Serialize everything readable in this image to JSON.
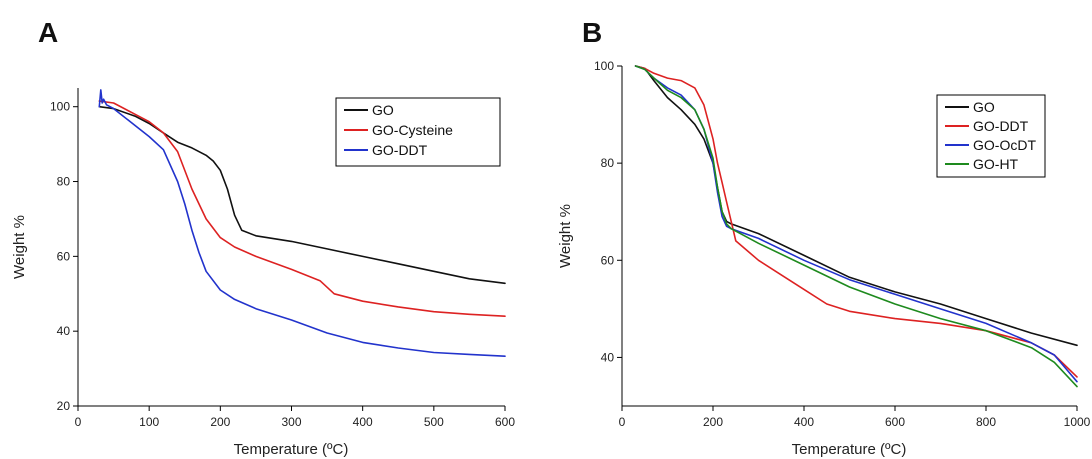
{
  "chart_data": [
    {
      "panel": "A",
      "type": "line",
      "xlabel": "Temperature (ºC)",
      "ylabel": "Weight %",
      "xlim": [
        0,
        600
      ],
      "ylim": [
        20,
        105
      ],
      "xticks": [
        0,
        100,
        200,
        300,
        400,
        500,
        600
      ],
      "yticks": [
        20,
        40,
        60,
        80,
        100
      ],
      "legend_position": "top-right",
      "grid": false,
      "series": [
        {
          "name": "GO",
          "color": "#111111",
          "x": [
            30,
            50,
            80,
            100,
            120,
            140,
            160,
            180,
            190,
            200,
            210,
            220,
            230,
            250,
            300,
            350,
            400,
            450,
            500,
            550,
            600
          ],
          "y": [
            100,
            99.5,
            97.5,
            95.5,
            93,
            90.5,
            89,
            87,
            85.5,
            83,
            78,
            71,
            67,
            65.5,
            64,
            62,
            60,
            58,
            56,
            54,
            52.8
          ]
        },
        {
          "name": "GO-Cysteine",
          "color": "#dd2222",
          "x": [
            30,
            50,
            80,
            100,
            120,
            140,
            160,
            180,
            200,
            220,
            250,
            300,
            340,
            360,
            400,
            450,
            500,
            550,
            600
          ],
          "y": [
            101.5,
            101,
            98,
            96,
            93,
            88,
            78,
            70,
            65,
            62.5,
            60,
            56.5,
            53.5,
            50,
            48,
            46.5,
            45.2,
            44.5,
            44
          ]
        },
        {
          "name": "GO-DDT",
          "color": "#2233cc",
          "x": [
            30,
            32,
            34,
            36,
            40,
            50,
            70,
            100,
            120,
            140,
            150,
            160,
            170,
            180,
            200,
            220,
            250,
            300,
            350,
            400,
            450,
            500,
            550,
            600
          ],
          "y": [
            100,
            104.5,
            101,
            102,
            100.5,
            99.5,
            96.5,
            92,
            88.5,
            80,
            74,
            67,
            61,
            56,
            51,
            48.5,
            46,
            43,
            39.5,
            37,
            35.5,
            34.3,
            33.8,
            33.3
          ]
        }
      ]
    },
    {
      "panel": "B",
      "type": "line",
      "xlabel": "Temperature (ºC)",
      "ylabel": "Weight %",
      "xlim": [
        0,
        1000
      ],
      "ylim": [
        30,
        100
      ],
      "xticks": [
        0,
        200,
        400,
        600,
        800,
        1000
      ],
      "yticks": [
        40,
        60,
        80,
        100
      ],
      "legend_position": "top-right",
      "grid": false,
      "series": [
        {
          "name": "GO",
          "color": "#111111",
          "x": [
            30,
            50,
            70,
            100,
            130,
            160,
            180,
            200,
            210,
            220,
            230,
            240,
            300,
            400,
            500,
            600,
            700,
            800,
            900,
            1000
          ],
          "y": [
            100,
            99.5,
            97,
            93.5,
            91,
            88,
            85,
            80,
            75,
            70,
            68,
            67.5,
            65.5,
            61,
            56.5,
            53.5,
            51,
            48,
            45,
            42.5
          ]
        },
        {
          "name": "GO-DDT",
          "color": "#dd2222",
          "x": [
            30,
            50,
            70,
            100,
            130,
            160,
            180,
            200,
            210,
            220,
            230,
            240,
            250,
            300,
            350,
            400,
            450,
            500,
            600,
            700,
            800,
            900,
            950,
            1000
          ],
          "y": [
            100,
            99.5,
            98.5,
            97.5,
            97,
            95.5,
            92,
            85,
            80,
            76,
            72,
            68,
            64,
            60,
            57,
            54,
            51,
            49.5,
            48,
            47,
            45.5,
            43,
            40.5,
            36
          ]
        },
        {
          "name": "GO-OcDT",
          "color": "#2233cc",
          "x": [
            30,
            50,
            70,
            100,
            130,
            160,
            180,
            200,
            210,
            220,
            230,
            240,
            300,
            400,
            500,
            600,
            700,
            800,
            900,
            950,
            1000
          ],
          "y": [
            100,
            99.3,
            97.5,
            95.5,
            94,
            91,
            87,
            80,
            74,
            69,
            67,
            66.5,
            64.5,
            60,
            56,
            53,
            50,
            47,
            43,
            40.5,
            35
          ]
        },
        {
          "name": "GO-HT",
          "color": "#1e8a1e",
          "x": [
            30,
            50,
            70,
            100,
            130,
            160,
            180,
            200,
            210,
            220,
            230,
            240,
            300,
            400,
            500,
            600,
            700,
            800,
            900,
            950,
            1000
          ],
          "y": [
            100,
            99.3,
            97.5,
            95,
            93.5,
            91,
            87,
            81,
            75,
            70,
            67.5,
            66.5,
            63.5,
            59,
            54.5,
            51,
            48,
            45.5,
            42,
            39,
            34
          ]
        }
      ]
    }
  ]
}
